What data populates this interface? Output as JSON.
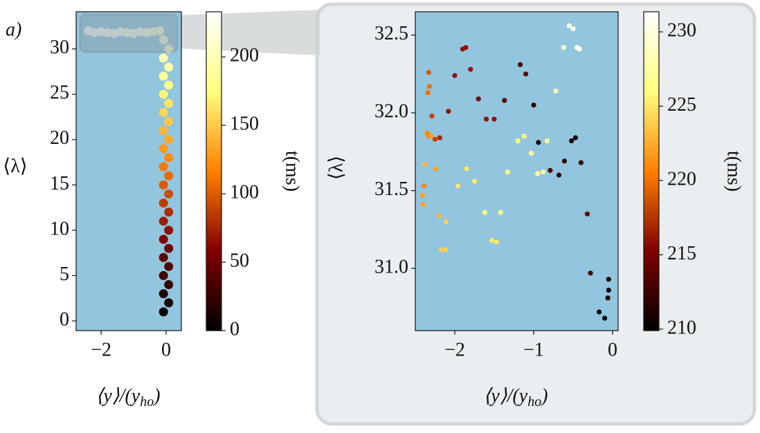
{
  "chart_data": [
    {
      "type": "scatter",
      "annotation": "a)",
      "ylabel": "⟨λ⟩",
      "xlabel": [
        "⟨y⟩/(y",
        "ho",
        ")"
      ],
      "xlim": [
        -2.77,
        0.47
      ],
      "ylim": [
        -1.07,
        34.1
      ],
      "xticks": [
        {
          "value": -2,
          "label": "−2"
        },
        0
      ],
      "yticks": [
        0,
        5,
        10,
        15,
        20,
        25,
        30
      ],
      "colormap": "afmhot",
      "background": "#92c5de",
      "colorbar": {
        "label": "t(ms)",
        "lim": [
          0,
          233
        ],
        "ticks": [
          0,
          50,
          100,
          150,
          200
        ]
      },
      "series": [
        {
          "x": [
            -0.08,
            0.08,
            -0.08,
            0.08,
            -0.08,
            0.08,
            -0.08,
            0.08,
            -0.08,
            0.08,
            -0.08,
            0.08,
            -0.08,
            0.08,
            -0.08,
            0.08,
            -0.08,
            0.08,
            -0.08,
            0.08,
            -0.08,
            0.08,
            -0.08,
            0.08,
            -0.08,
            0.08,
            -0.08,
            0.08,
            -0.08,
            0.08,
            -0.08,
            -0.2,
            -0.4,
            -0.6,
            -0.8,
            -1.0,
            -1.2,
            -1.4,
            -1.6,
            -1.8,
            -2.0,
            -2.2,
            -2.4
          ],
          "values": [
            1,
            2,
            3,
            4,
            5,
            6,
            7,
            8,
            9,
            10,
            11,
            12,
            13,
            14,
            15,
            16,
            17,
            18,
            19,
            20,
            21,
            22,
            23,
            24,
            25,
            26,
            27,
            28,
            29,
            30,
            31,
            32,
            31.9,
            31.8,
            31.9,
            31.7,
            31.8,
            31.9,
            31.7,
            31.8,
            31.9,
            31.8,
            32.0
          ],
          "c": [
            2,
            9,
            16,
            23,
            30,
            37,
            44,
            51,
            58,
            65,
            72,
            79,
            86,
            93,
            100,
            107,
            114,
            121,
            128,
            135,
            142,
            149,
            156,
            163,
            170,
            177,
            184,
            191,
            198,
            205,
            212,
            214,
            216,
            218,
            220,
            222,
            224,
            225,
            226,
            227,
            228,
            229,
            230
          ]
        }
      ]
    },
    {
      "type": "scatter",
      "ylabel": "⟨λ⟩",
      "xlabel": [
        "⟨y⟩/(y",
        "ho",
        ")"
      ],
      "xlim": [
        -2.5,
        0.07
      ],
      "ylim": [
        30.6,
        32.65
      ],
      "xticks": [
        {
          "value": -2,
          "label": "−2"
        },
        {
          "value": -1,
          "label": "−1"
        },
        0
      ],
      "yticks": [
        {
          "value": 31,
          "label": "31.0"
        },
        31.5,
        {
          "value": 32,
          "label": "32.0"
        },
        32.5
      ],
      "colormap": "afmhot",
      "background": "#92c5de",
      "colorbar": {
        "label": "t(ms)",
        "lim": [
          209.9,
          231.35
        ],
        "ticks": [
          210,
          215,
          220,
          225,
          230
        ]
      },
      "series": [
        {
          "x": [
            -0.55,
            -0.5,
            -0.45,
            -0.42,
            -0.62,
            -0.72,
            -1.9,
            -1.86,
            -1.8,
            -1.17,
            -1.1,
            -2.0,
            -2.33,
            -2.32,
            -2.34,
            -1.7,
            -1.37,
            -1.0,
            -2.08,
            -2.29,
            -1.6,
            -1.5,
            -2.35,
            -2.33,
            -2.3,
            -2.25,
            -2.19,
            -1.12,
            -1.2,
            -0.94,
            -0.83,
            -0.52,
            -0.47,
            -0.61,
            -0.4,
            -2.38,
            -2.24,
            -1.85,
            -1.75,
            -1.96,
            -1.33,
            -1.03,
            -0.95,
            -0.88,
            -0.79,
            -0.68,
            -2.39,
            -2.41,
            -2.4,
            -2.2,
            -2.11,
            -1.62,
            -1.42,
            -1.53,
            -1.47,
            -2.17,
            -2.12,
            -0.32,
            -0.28,
            -0.05,
            -0.05,
            -0.06,
            -0.17,
            -0.1
          ],
          "values": [
            32.56,
            32.54,
            32.42,
            32.41,
            32.42,
            32.14,
            32.41,
            32.42,
            32.28,
            32.31,
            32.25,
            32.24,
            32.26,
            32.17,
            32.13,
            32.09,
            32.08,
            32.05,
            32.01,
            31.98,
            31.96,
            31.96,
            31.87,
            31.85,
            31.85,
            31.83,
            31.84,
            31.85,
            31.82,
            31.81,
            31.82,
            31.82,
            31.84,
            31.69,
            31.68,
            31.67,
            31.64,
            31.64,
            31.56,
            31.53,
            31.62,
            31.74,
            31.61,
            31.62,
            31.63,
            31.6,
            31.53,
            31.47,
            31.41,
            31.34,
            31.3,
            31.36,
            31.36,
            31.18,
            31.17,
            31.12,
            31.12,
            31.35,
            30.97,
            30.93,
            30.86,
            30.81,
            30.72,
            30.68
          ],
          "c": [
            230.5,
            230.5,
            230.5,
            230.5,
            229.5,
            228,
            216,
            216,
            216,
            213,
            214,
            216,
            219,
            220,
            220,
            215,
            213,
            212,
            216,
            218,
            216,
            216,
            221,
            221,
            222,
            218,
            217,
            226,
            226,
            211,
            227,
            211,
            210.5,
            212,
            212,
            223,
            222,
            225,
            225,
            225,
            226,
            227,
            227,
            227,
            213,
            212,
            221,
            222,
            222,
            223,
            224,
            226,
            226,
            225,
            225,
            224,
            224,
            214,
            213,
            210.3,
            210.3,
            210.3,
            210.3,
            210.3
          ]
        }
      ]
    }
  ]
}
